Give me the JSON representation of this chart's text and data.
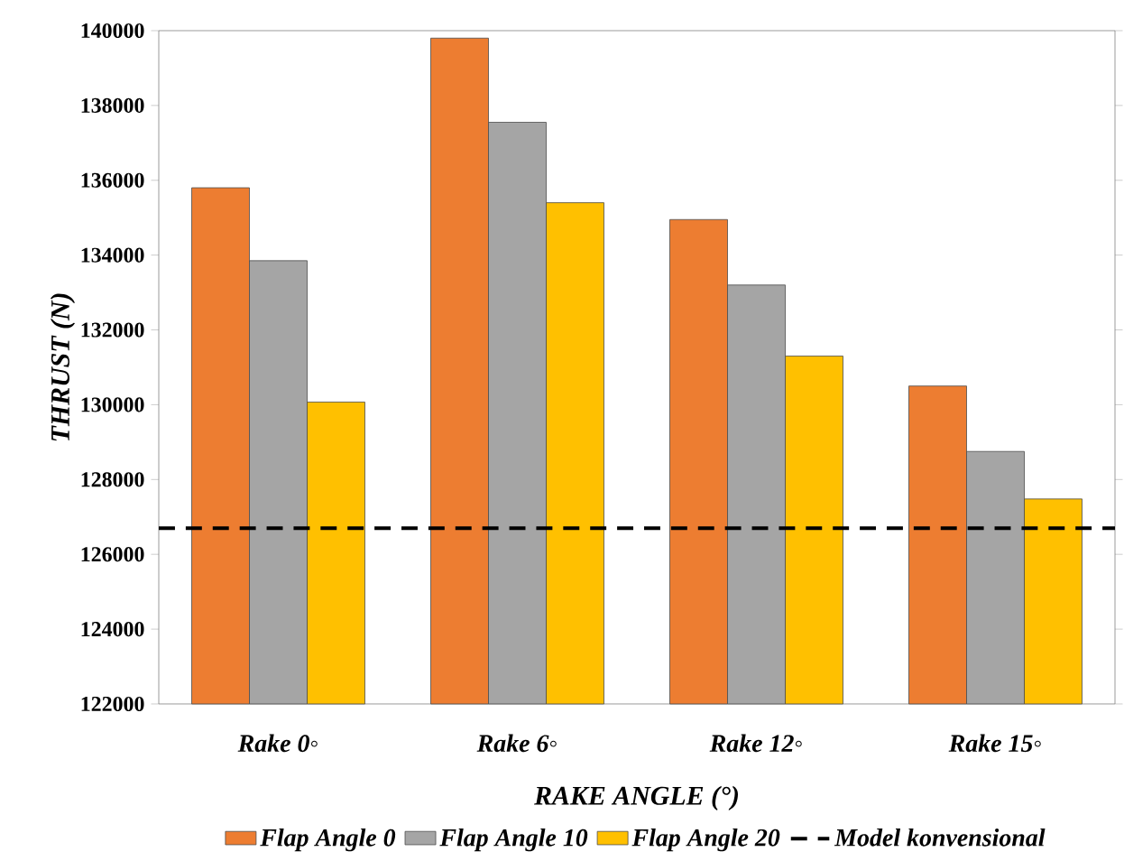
{
  "chart_data": {
    "type": "bar",
    "xlabel": "RAKE ANGLE (°)",
    "ylabel": "THRUST (N)",
    "categories": [
      "Rake 0◦",
      "Rake 6◦",
      "Rake 12◦",
      "Rake 15◦"
    ],
    "series": [
      {
        "name": "Flap Angle 0",
        "color": "#ed7d31",
        "values": [
          135800,
          139800,
          134950,
          130500
        ]
      },
      {
        "name": "Flap Angle 10",
        "color": "#a5a5a5",
        "values": [
          133850,
          137550,
          133200,
          128750
        ]
      },
      {
        "name": "Flap Angle 20",
        "color": "#ffc000",
        "values": [
          130070,
          135400,
          131300,
          127480
        ]
      }
    ],
    "ylim": [
      122000,
      140000
    ],
    "yticks": [
      122000,
      124000,
      126000,
      128000,
      130000,
      132000,
      134000,
      136000,
      138000,
      140000
    ],
    "ref_lines": [
      {
        "axis": "y",
        "value": 126700,
        "label": "Model konvensional",
        "color": "#000000",
        "line_style": "dashed"
      }
    ],
    "grid": false,
    "legend": "bottom"
  }
}
